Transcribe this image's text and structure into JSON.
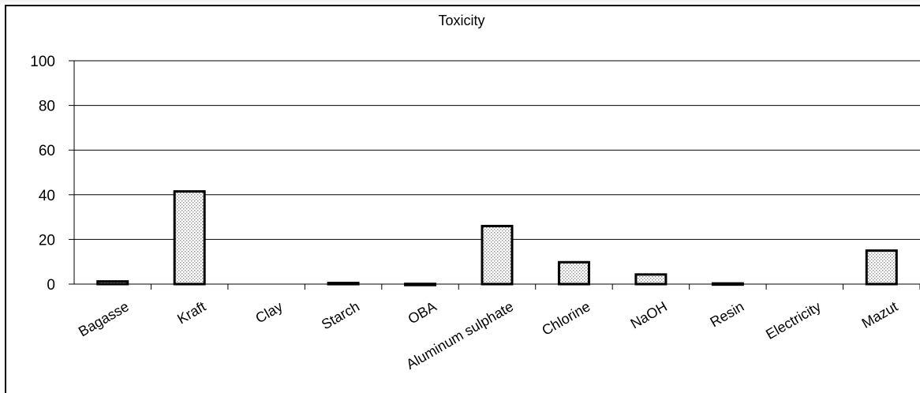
{
  "chart_data": {
    "type": "bar",
    "title": "Toxicity",
    "categories": [
      "Bagasse",
      "Kraft",
      "Clay",
      "Starch",
      "OBA",
      "Aluminum sulphate",
      "Chlorine",
      "NaOH",
      "Resin",
      "Electricity",
      "Mazut"
    ],
    "values": [
      1.2,
      41.5,
      0,
      0.5,
      0.1,
      26,
      9.8,
      4.3,
      0.3,
      0,
      15
    ],
    "ylim": [
      0,
      100
    ],
    "yticks": [
      "0",
      "20",
      "40",
      "60",
      "80",
      "100"
    ],
    "xlabel": "",
    "ylabel": "",
    "grid": true,
    "legend": "none",
    "colors": {
      "bar_fill": "#ffffff",
      "bar_pattern": "#9a9a9a",
      "bar_stroke": "#000000",
      "grid": "#000000"
    }
  }
}
